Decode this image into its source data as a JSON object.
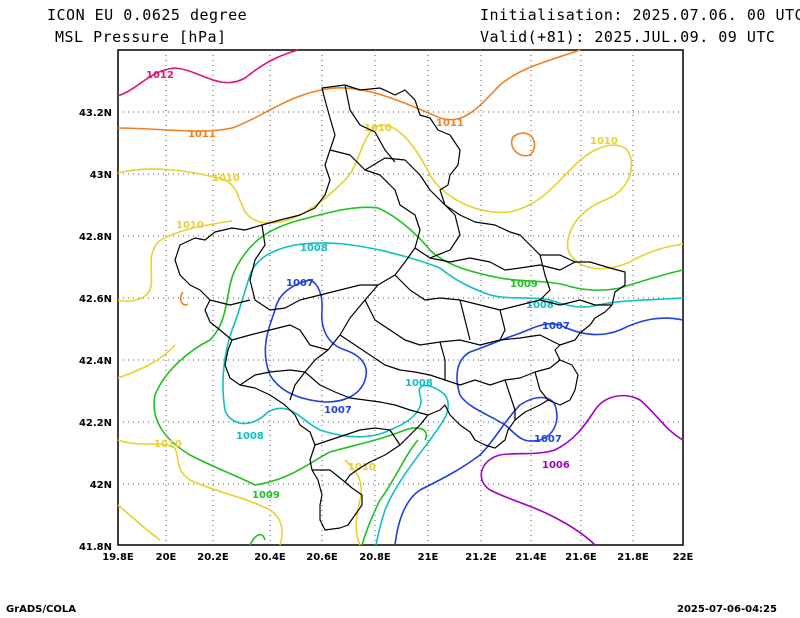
{
  "header": {
    "model": "ICON EU 0.0625 degree",
    "field": "MSL Pressure [hPa]",
    "init": "Initialisation: 2025.07.06. 00 UTC",
    "valid": "Valid(+81): 2025.JUL.09. 09 UTC"
  },
  "footer": {
    "credit": "GrADS/COLA",
    "timestamp": "2025-07-06-04:25"
  },
  "map": {
    "lon_labels": [
      "19.8E",
      "20E",
      "20.2E",
      "20.4E",
      "20.6E",
      "20.8E",
      "21E",
      "21.2E",
      "21.4E",
      "21.6E",
      "21.8E",
      "22E"
    ],
    "lat_labels": [
      "43.2N",
      "43N",
      "42.8N",
      "42.6N",
      "42.4N",
      "42.2N",
      "42N",
      "41.8N"
    ],
    "contours": [
      {
        "value": "1012",
        "color": "#e0157a"
      },
      {
        "value": "1011",
        "color": "#f08020"
      },
      {
        "value": "1010",
        "color": "#e8d030"
      },
      {
        "value": "1009",
        "color": "#20c020"
      },
      {
        "value": "1008",
        "color": "#10c0c0"
      },
      {
        "value": "1007",
        "color": "#2040e0"
      },
      {
        "value": "1006",
        "color": "#a000c0"
      }
    ]
  }
}
